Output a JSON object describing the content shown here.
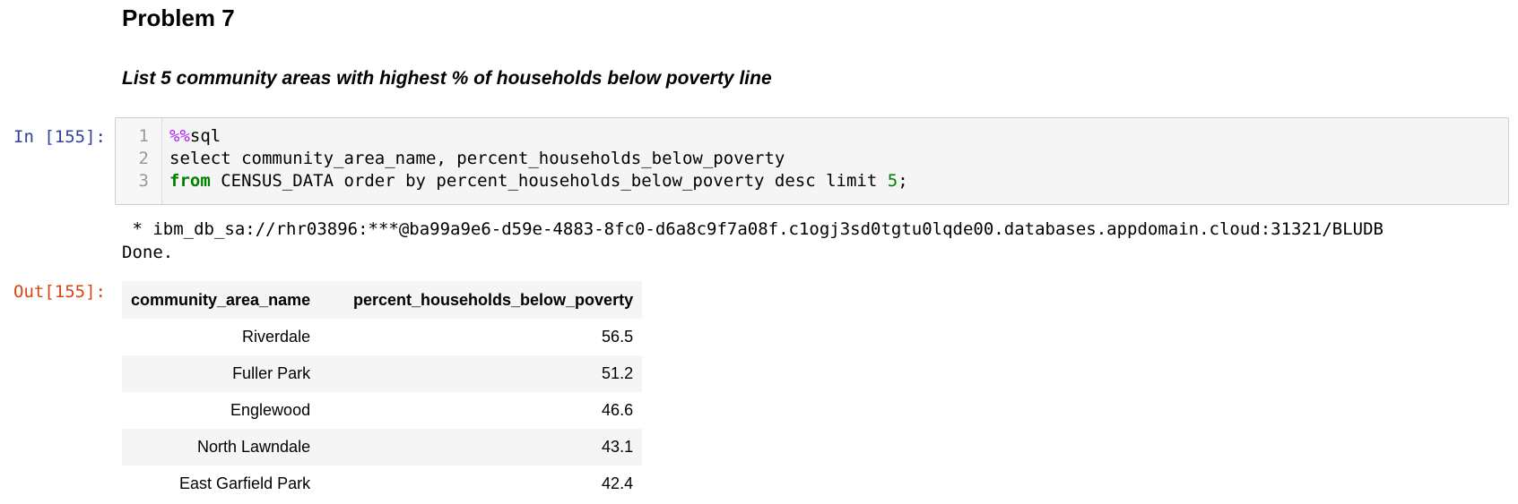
{
  "markdown": {
    "heading": "Problem 7",
    "subheading": "List 5 community areas with highest % of households below poverty line"
  },
  "code_cell": {
    "prompt": "In [155]:",
    "line_numbers": [
      "1",
      "2",
      "3"
    ],
    "lines": {
      "l1_magic": "%%",
      "l1_rest": "sql",
      "l2": "select community_area_name, percent_households_below_poverty",
      "l3_kw": "from",
      "l3_mid": " CENSUS_DATA order by percent_households_below_poverty desc limit ",
      "l3_num": "5",
      "l3_end": ";"
    }
  },
  "output": {
    "stdout_line1": " * ibm_db_sa://rhr03896:***@ba99a9e6-d59e-4883-8fc0-d6a8c9f7a08f.c1ogj3sd0tgtu0lqde00.databases.appdomain.cloud:31321/BLUDB",
    "stdout_line2": "Done.",
    "prompt": "Out[155]:",
    "table": {
      "columns": [
        "community_area_name",
        "percent_households_below_poverty"
      ],
      "rows": [
        [
          "Riverdale",
          "56.5"
        ],
        [
          "Fuller Park",
          "51.2"
        ],
        [
          "Englewood",
          "46.6"
        ],
        [
          "North Lawndale",
          "43.1"
        ],
        [
          "East Garfield Park",
          "42.4"
        ]
      ]
    }
  }
}
